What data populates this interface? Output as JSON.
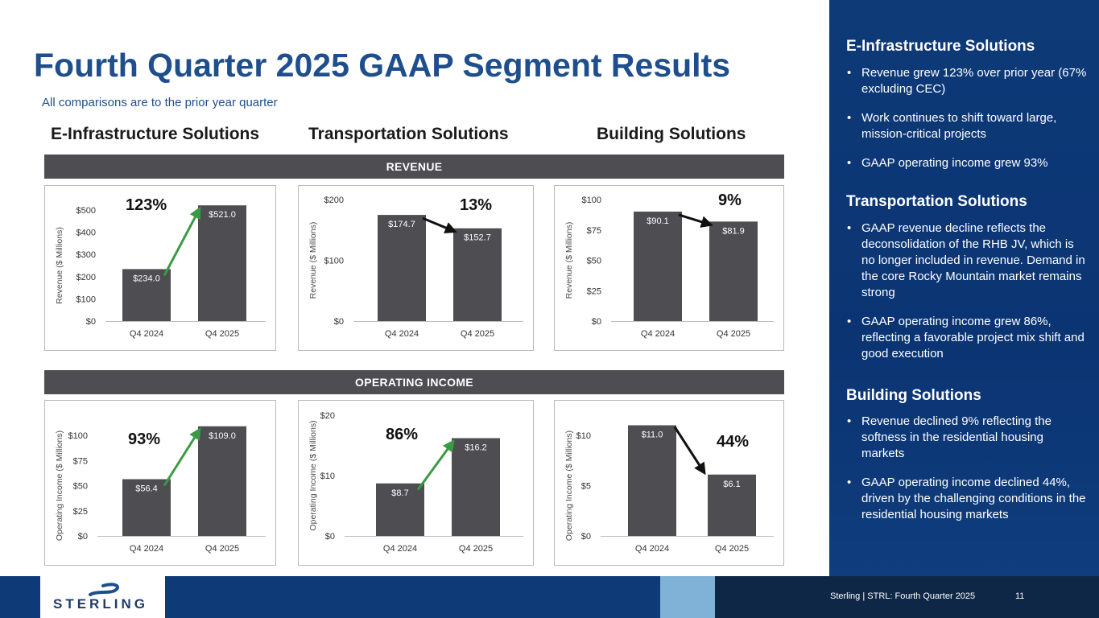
{
  "title": "Fourth Quarter 2025 GAAP Segment Results",
  "subtitle": "All comparisons are to the prior year quarter",
  "segment_headers": [
    "E-Infrastructure Solutions",
    "Transportation Solutions",
    "Building Solutions"
  ],
  "bands": {
    "revenue": "REVENUE",
    "operating_income": "OPERATING INCOME"
  },
  "colors": {
    "brand": "#1f4e8c",
    "bar": "#4d4d52",
    "up_arrow": "#3a9a44",
    "down_arrow": "#111111",
    "sidebar": "#0e3a78"
  },
  "chart_data": [
    {
      "type": "bar",
      "segment": "E-Infrastructure Solutions",
      "metric": "Revenue",
      "ylabel": "Revenue ($ Millions)",
      "categories": [
        "Q4 2024",
        "Q4 2025"
      ],
      "values": [
        234.0,
        521.0
      ],
      "value_labels": [
        "$234.0",
        "$521.0"
      ],
      "ylim": [
        0,
        500
      ],
      "ticks": [
        0,
        100,
        200,
        300,
        400,
        500
      ],
      "tick_labels": [
        "$0",
        "$100",
        "$200",
        "$300",
        "$400",
        "$500"
      ],
      "change": "123%",
      "direction": "up"
    },
    {
      "type": "bar",
      "segment": "Transportation Solutions",
      "metric": "Revenue",
      "ylabel": "Revenue ($ Millions)",
      "categories": [
        "Q4 2024",
        "Q4 2025"
      ],
      "values": [
        174.7,
        152.7
      ],
      "value_labels": [
        "$174.7",
        "$152.7"
      ],
      "ylim": [
        0,
        200
      ],
      "ticks": [
        0,
        100,
        200
      ],
      "tick_labels": [
        "$0",
        "$100",
        "$200"
      ],
      "change": "13%",
      "direction": "down"
    },
    {
      "type": "bar",
      "segment": "Building Solutions",
      "metric": "Revenue",
      "ylabel": "Revenue ($ Millions)",
      "categories": [
        "Q4 2024",
        "Q4 2025"
      ],
      "values": [
        90.1,
        81.9
      ],
      "value_labels": [
        "$90.1",
        "$81.9"
      ],
      "ylim": [
        0,
        100
      ],
      "ticks": [
        0,
        25,
        50,
        75,
        100
      ],
      "tick_labels": [
        "$0",
        "$25",
        "$50",
        "$75",
        "$100"
      ],
      "change": "9%",
      "direction": "down"
    },
    {
      "type": "bar",
      "segment": "E-Infrastructure Solutions",
      "metric": "Operating Income",
      "ylabel": "Operating Income ($ Millions)",
      "categories": [
        "Q4 2024",
        "Q4 2025"
      ],
      "values": [
        56.4,
        109.0
      ],
      "value_labels": [
        "$56.4",
        "$109.0"
      ],
      "ylim": [
        0,
        100
      ],
      "ticks": [
        0,
        25,
        50,
        75,
        100
      ],
      "tick_labels": [
        "$0",
        "$25",
        "$50",
        "$75",
        "$100"
      ],
      "change": "93%",
      "direction": "up"
    },
    {
      "type": "bar",
      "segment": "Transportation Solutions",
      "metric": "Operating Income",
      "ylabel": "Operating Income ($ Millions)",
      "categories": [
        "Q4 2024",
        "Q4 2025"
      ],
      "values": [
        8.7,
        16.2
      ],
      "value_labels": [
        "$8.7",
        "$16.2"
      ],
      "ylim": [
        0,
        20
      ],
      "ticks": [
        0,
        10,
        20
      ],
      "tick_labels": [
        "$0",
        "$10",
        "$20"
      ],
      "change": "86%",
      "direction": "up"
    },
    {
      "type": "bar",
      "segment": "Building Solutions",
      "metric": "Operating Income",
      "ylabel": "Operating Income ($ Millions)",
      "categories": [
        "Q4 2024",
        "Q4 2025"
      ],
      "values": [
        11.0,
        6.1
      ],
      "value_labels": [
        "$11.0",
        "$6.1"
      ],
      "ylim": [
        0,
        10
      ],
      "ticks": [
        0,
        5,
        10
      ],
      "tick_labels": [
        "$0",
        "$5",
        "$10"
      ],
      "change": "44%",
      "direction": "down"
    }
  ],
  "sidebar": {
    "sections": [
      {
        "heading": "E-Infrastructure Solutions",
        "bullets": [
          "Revenue grew 123% over prior year (67% excluding CEC)",
          "Work continues to shift toward large, mission-critical projects",
          "GAAP operating income grew 93%"
        ]
      },
      {
        "heading": "Transportation Solutions",
        "bullets": [
          "GAAP revenue decline reflects the deconsolidation of the RHB JV, which is no longer included in revenue. Demand in the core Rocky Mountain market remains strong",
          "GAAP operating income grew 86%, reflecting a favorable project mix shift and good execution"
        ]
      },
      {
        "heading": "Building Solutions",
        "bullets": [
          "Revenue declined 9% reflecting the softness in the residential housing markets",
          "GAAP operating income declined 44%, driven by the challenging conditions in the residential housing markets"
        ]
      }
    ]
  },
  "footer": {
    "logo": "STERLING",
    "caption": "Sterling | STRL:  Fourth Quarter 2025",
    "page": "11"
  }
}
